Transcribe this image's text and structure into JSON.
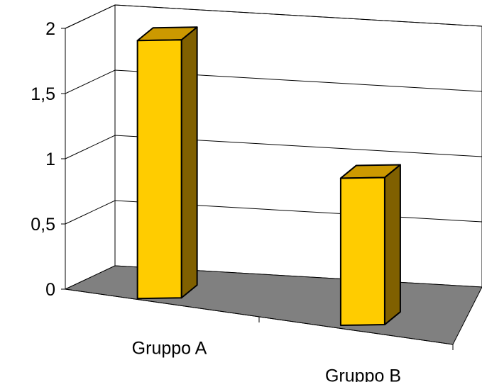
{
  "chart_data": {
    "type": "bar",
    "style": "3d-column",
    "categories": [
      "Gruppo A",
      "Gruppo B"
    ],
    "values": [
      2,
      1.15
    ],
    "ylim": [
      0,
      2
    ],
    "yticks": [
      {
        "value": 0,
        "label": "0"
      },
      {
        "value": 0.5,
        "label": "0,5"
      },
      {
        "value": 1,
        "label": "1"
      },
      {
        "value": 1.5,
        "label": "1,5"
      },
      {
        "value": 2,
        "label": "2"
      }
    ],
    "grid": true,
    "legend": "none",
    "colors": {
      "bar_front": "#FFCC00",
      "bar_top": "#CC9900",
      "bar_side": "#806000",
      "floor": "#808080",
      "gridline": "#000000"
    }
  }
}
